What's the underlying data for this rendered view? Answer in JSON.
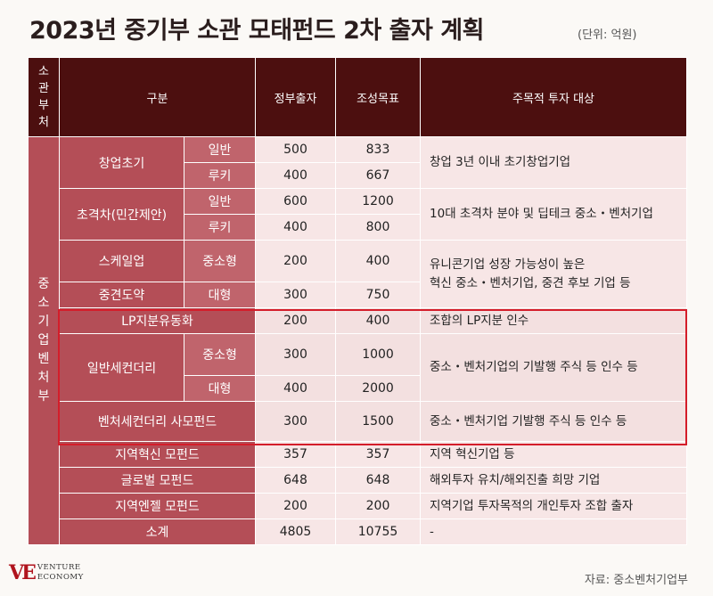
{
  "title": "2023년 중기부 소관 모태펀드 2차 출자 계획",
  "unit": "(단위: 억원)",
  "header": {
    "dept": "소관부처",
    "category": "구분",
    "gov": "정부출자",
    "target": "조성목표",
    "desc": "주목적 투자 대상"
  },
  "dept_name": "중소기업벤처부",
  "rows": {
    "startup": {
      "category": "창업초기",
      "desc": "창업 3년 이내 초기창업기업",
      "sub1": {
        "label": "일반",
        "gov": "500",
        "target": "833"
      },
      "sub2": {
        "label": "루키",
        "gov": "400",
        "target": "667"
      }
    },
    "superGap": {
      "category": "초격차(민간제안)",
      "desc": "10대 초격차 분야 및 딥테크 중소・벤처기업",
      "sub1": {
        "label": "일반",
        "gov": "600",
        "target": "1200"
      },
      "sub2": {
        "label": "루키",
        "gov": "400",
        "target": "800"
      }
    },
    "scaleup": {
      "category": "스케일업",
      "sub": "중소형",
      "gov": "200",
      "target": "400"
    },
    "midLeap": {
      "category": "중견도약",
      "sub": "대형",
      "gov": "300",
      "target": "750"
    },
    "scaleDesc": {
      "line1": "유니콘기업 성장 가능성이 높은",
      "line2": "혁신 중소・벤처기업, 중견 후보 기업 등"
    },
    "lp": {
      "category": "LP지분유동화",
      "gov": "200",
      "target": "400",
      "desc": "조합의 LP지분 인수"
    },
    "secondary": {
      "category": "일반세컨더리",
      "desc": "중소・벤처기업의 기발행 주식 등 인수 등",
      "sub1": {
        "label": "중소형",
        "gov": "300",
        "target": "1000"
      },
      "sub2": {
        "label": "대형",
        "gov": "400",
        "target": "2000"
      }
    },
    "ventureSec": {
      "category": "벤처세컨더리 사모펀드",
      "gov": "300",
      "target": "1500",
      "desc": "중소・벤처기업 기발행 주식 등 인수 등"
    },
    "regional": {
      "category": "지역혁신 모펀드",
      "gov": "357",
      "target": "357",
      "desc": "지역 혁신기업 등"
    },
    "global": {
      "category": "글로벌 모펀드",
      "gov": "648",
      "target": "648",
      "desc": "해외투자 유치/해외진출 희망 기업"
    },
    "angel": {
      "category": "지역엔젤 모펀드",
      "gov": "200",
      "target": "200",
      "desc": "지역기업 투자목적의 개인투자 조합 출자"
    },
    "total": {
      "category": "소계",
      "gov": "4805",
      "target": "10755",
      "desc": "-"
    }
  },
  "source": "자료: 중소벤처기업부",
  "logo": {
    "mark": "VE",
    "line1": "VENTURE",
    "line2": "ECONOMY"
  },
  "colors": {
    "header": "#4c0f0f",
    "category": "#b44e57",
    "cell": "#f7e6e6",
    "highlight": "#d41d2a"
  }
}
